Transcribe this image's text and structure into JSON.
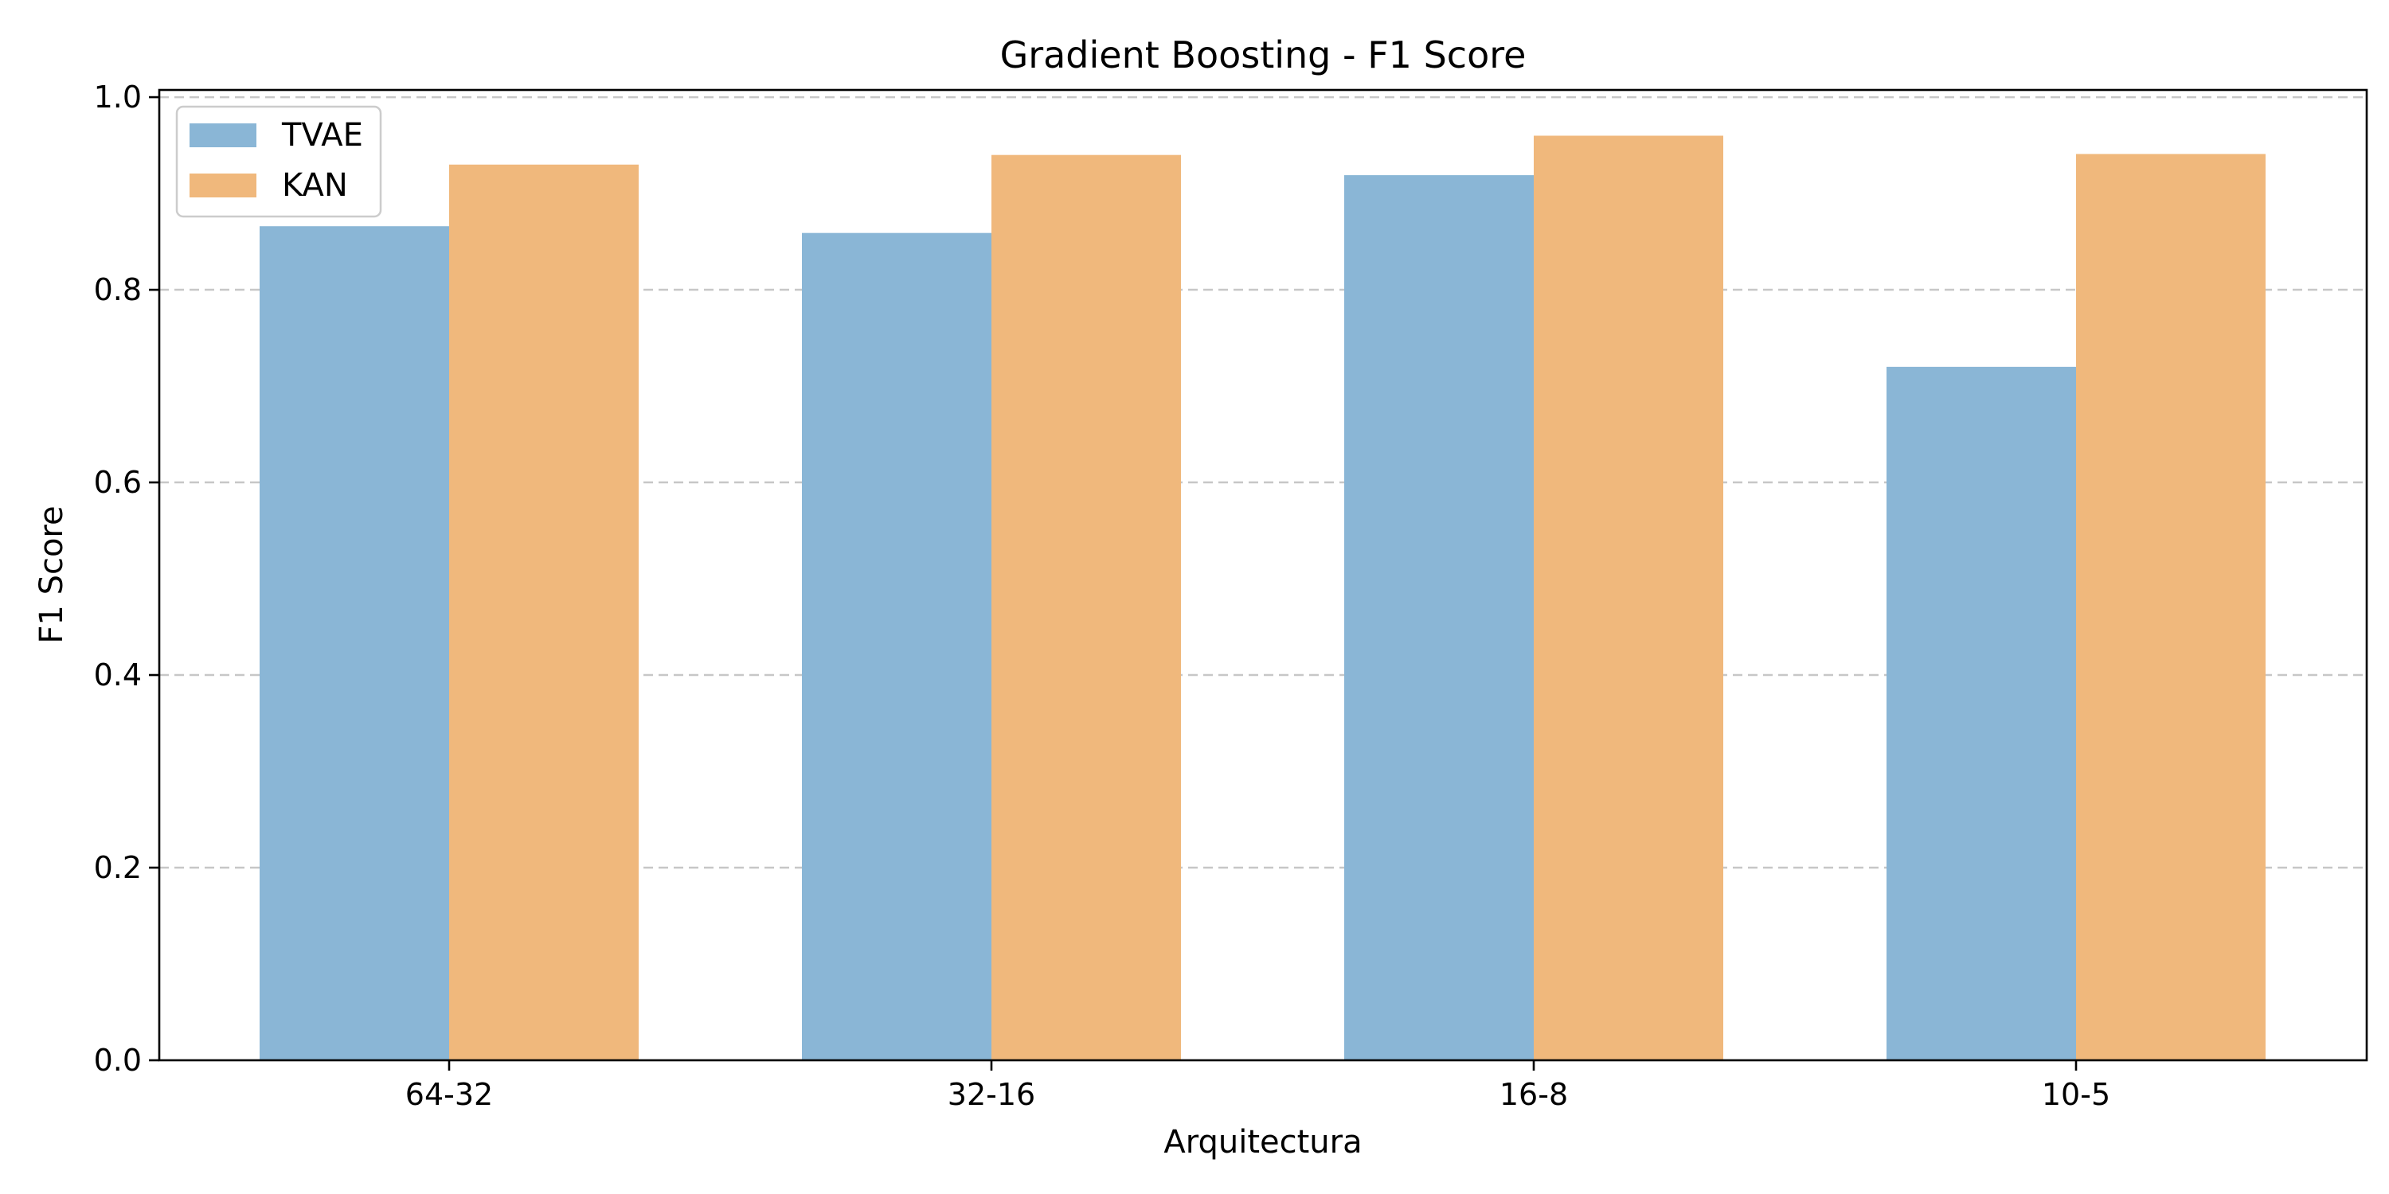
{
  "chart_data": {
    "type": "bar",
    "title": "Gradient Boosting - F1 Score",
    "xlabel": "Arquitectura",
    "ylabel": "F1 Score",
    "categories": [
      "64-32",
      "32-16",
      "16-8",
      "10-5"
    ],
    "series": [
      {
        "name": "TVAE",
        "values": [
          0.866,
          0.859,
          0.919,
          0.72
        ],
        "color": "#8ab6d6"
      },
      {
        "name": "KAN",
        "values": [
          0.93,
          0.94,
          0.96,
          0.941
        ],
        "color": "#f0b87c"
      }
    ],
    "ylim": [
      0.0,
      1.0
    ],
    "yticks": [
      "0.0",
      "0.2",
      "0.4",
      "0.6",
      "0.8",
      "1.0"
    ],
    "grid": "y-dashed",
    "legend_position": "top-left"
  }
}
